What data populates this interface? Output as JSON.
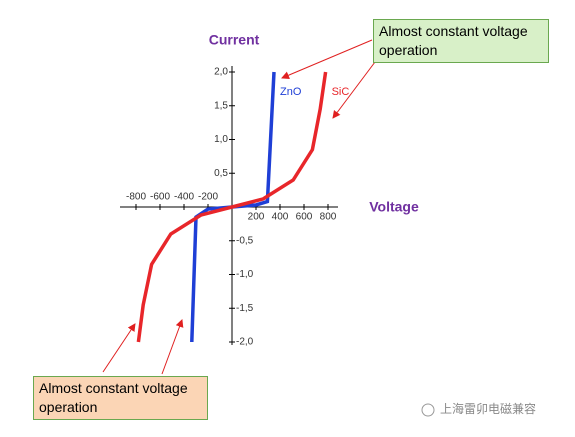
{
  "chart_data": {
    "type": "line",
    "y_label": "Current",
    "x_label": "Voltage",
    "xlim": [
      -800,
      800
    ],
    "ylim": [
      -2,
      2
    ],
    "xticks": [
      -800,
      -600,
      -400,
      -200,
      200,
      400,
      600,
      800
    ],
    "yticks": [
      {
        "value": 2,
        "label": "2,0"
      },
      {
        "value": 1.5,
        "label": "1,5"
      },
      {
        "value": 1,
        "label": "1,0"
      },
      {
        "value": 0.5,
        "label": "0,5"
      },
      {
        "value": -0.5,
        "label": "-0,5"
      },
      {
        "value": -1,
        "label": "-1,0"
      },
      {
        "value": -1.5,
        "label": "-1,5"
      },
      {
        "value": -2,
        "label": "-2,0"
      }
    ],
    "series": [
      {
        "name": "ZnO",
        "color": "#1f3fd6",
        "x": [
          -335,
          -300,
          -200,
          0,
          200,
          295,
          350
        ],
        "values": [
          -2.0,
          -0.15,
          -0.03,
          0,
          0.03,
          0.08,
          2.0
        ]
      },
      {
        "name": "SiC",
        "color": "#e8262a",
        "x": [
          -780,
          -740,
          -670,
          -510,
          -260,
          0,
          260,
          510,
          670,
          735,
          780
        ],
        "values": [
          -2.0,
          -1.45,
          -0.85,
          -0.4,
          -0.12,
          0,
          0.12,
          0.4,
          0.85,
          1.45,
          2.0
        ]
      }
    ],
    "annotations": [
      "Almost constant voltage operation",
      "Almost constant voltage operation"
    ],
    "watermark": "上海雷卯电磁兼容"
  }
}
